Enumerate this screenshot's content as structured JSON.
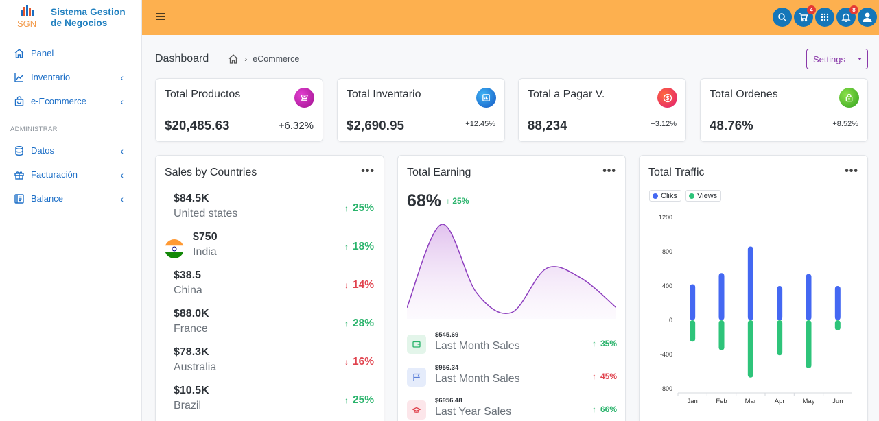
{
  "brand": {
    "line1": "Sistema Gestion",
    "line2": "de Negocios",
    "logo_text": "SGN"
  },
  "sidebar": {
    "items": [
      {
        "label": "Panel",
        "icon": "home-icon",
        "has_chevron": false
      },
      {
        "label": "Inventario",
        "icon": "chart-line-icon",
        "has_chevron": true
      },
      {
        "label": "e-Ecommerce",
        "icon": "shopping-bag-icon",
        "has_chevron": true
      }
    ],
    "section_heading": "ADMINISTRAR",
    "admin_items": [
      {
        "label": "Datos",
        "icon": "database-icon",
        "has_chevron": true
      },
      {
        "label": "Facturación",
        "icon": "gift-icon",
        "has_chevron": true
      },
      {
        "label": "Balance",
        "icon": "ledger-icon",
        "has_chevron": true
      }
    ],
    "chevron": "‹"
  },
  "topbar": {
    "cart_badge": "4",
    "notifications_badge": "8",
    "icons": [
      "search-icon",
      "cart-icon",
      "apps-grid-icon",
      "bell-icon",
      "user-icon"
    ]
  },
  "breadcrumb": {
    "title": "Dashboard",
    "separator": "›",
    "current": "eCommerce"
  },
  "settings": {
    "label": "Settings"
  },
  "stats": [
    {
      "title": "Total Productos",
      "value": "$20,485.63",
      "pct": "+6.32%",
      "color": "#c01fae",
      "icon": "cart-icon"
    },
    {
      "title": "Total Inventario",
      "value": "$2,690.95",
      "pct": "+12.45%",
      "color": "#1e88d8",
      "icon": "bar-chart-icon"
    },
    {
      "title": "Total a Pagar V.",
      "value": "88,234",
      "pct": "+3.12%",
      "color": "#f0344e",
      "icon": "dollar-coin-icon"
    },
    {
      "title": "Total Ordenes",
      "value": "48.76%",
      "pct": "+8.52%",
      "color": "#57c234",
      "icon": "lock-bag-icon"
    }
  ],
  "countries": {
    "title": "Sales by Countries",
    "rows": [
      {
        "amount": "$84.5K",
        "name": "United states",
        "pct": "25%",
        "dir": "up",
        "flag": false
      },
      {
        "amount": "$750",
        "name": "India",
        "pct": "18%",
        "dir": "up",
        "flag": true
      },
      {
        "amount": "$38.5",
        "name": "China",
        "pct": "14%",
        "dir": "down",
        "flag": false
      },
      {
        "amount": "$88.0K",
        "name": "France",
        "pct": "28%",
        "dir": "up",
        "flag": false
      },
      {
        "amount": "$78.3K",
        "name": "Australia",
        "pct": "16%",
        "dir": "down",
        "flag": false
      },
      {
        "amount": "$10.5K",
        "name": "Brazil",
        "pct": "25%",
        "dir": "up",
        "flag": false
      }
    ]
  },
  "earning": {
    "title": "Total Earning",
    "big_pct": "68%",
    "small_pct": "25%",
    "rows": [
      {
        "amount": "$545.69",
        "label": "Last Month Sales",
        "pct": "35%",
        "dir": "up",
        "bg": "#e3f5ea",
        "color": "#29b36b",
        "icon": "wallet-icon"
      },
      {
        "amount": "$956.34",
        "label": "Last Month Sales",
        "pct": "45%",
        "dir": "up-red",
        "bg": "#e5ecfb",
        "color": "#5b7fd8",
        "icon": "flag-icon"
      },
      {
        "amount": "$6956.48",
        "label": "Last Year Sales",
        "pct": "66%",
        "dir": "up",
        "bg": "#fce6ea",
        "color": "#e0434e",
        "icon": "graduation-cap-icon"
      }
    ]
  },
  "traffic": {
    "title": "Total Traffic",
    "legend": [
      {
        "label": "Cliks",
        "color": "#4468f2"
      },
      {
        "label": "Views",
        "color": "#2ec47a"
      }
    ]
  },
  "chart_data": [
    {
      "type": "area",
      "title": "Total Earning",
      "x": [
        0,
        1,
        2,
        3,
        4,
        5,
        6
      ],
      "values": [
        10,
        95,
        25,
        5,
        50,
        40,
        10
      ],
      "ylim": [
        0,
        100
      ],
      "color": "#8e3fbf"
    },
    {
      "type": "bar",
      "title": "Total Traffic",
      "categories": [
        "Jan",
        "Feb",
        "Mar",
        "Apr",
        "May",
        "Jun"
      ],
      "series": [
        {
          "name": "Cliks",
          "values": [
            420,
            550,
            860,
            400,
            540,
            400
          ]
        },
        {
          "name": "Views",
          "values": [
            -250,
            -350,
            -670,
            -410,
            -560,
            -120
          ]
        }
      ],
      "ylim": [
        -800,
        1200
      ],
      "yticks": [
        1200,
        800,
        400,
        0,
        -400,
        -800
      ],
      "ytick_labels": [
        "1200",
        "800",
        "400",
        "0",
        "-400",
        "-800"
      ],
      "colors": [
        "#4468f2",
        "#2ec47a"
      ]
    }
  ]
}
